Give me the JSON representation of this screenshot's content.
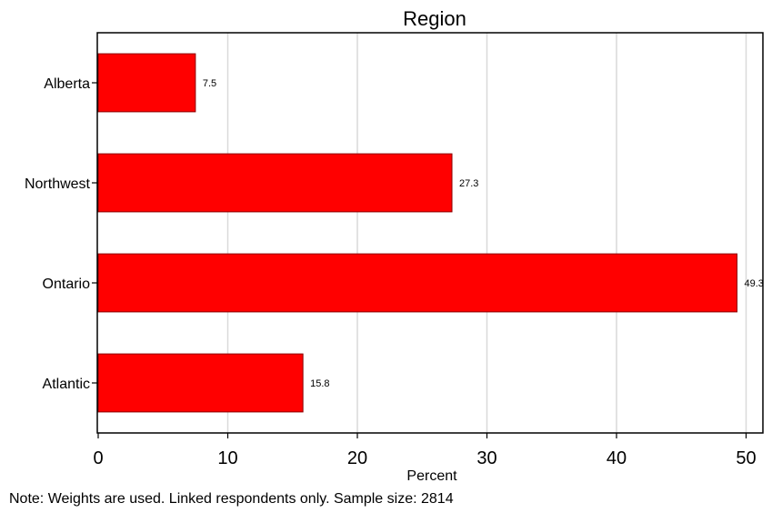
{
  "chart_data": {
    "type": "bar",
    "orientation": "horizontal",
    "title": "Region",
    "xlabel": "Percent",
    "ylabel": "",
    "categories": [
      "Alberta",
      "Northwest",
      "Ontario",
      "Atlantic"
    ],
    "values": [
      7.5,
      27.3,
      49.3,
      15.8
    ],
    "value_labels": [
      "7.5",
      "27.3",
      "49.3",
      "15.8"
    ],
    "xlim": [
      0,
      51.5
    ],
    "xticks": [
      0,
      10,
      20,
      30,
      40,
      50
    ],
    "xtick_labels": [
      "0",
      "10",
      "20",
      "30",
      "40",
      "50"
    ],
    "grid": true,
    "bar_color": "#ff0000",
    "bar_edge_color": "#8b0000",
    "grid_color": "#d9d9d9"
  },
  "note": "Note: Weights are used. Linked respondents only. Sample size: 2814"
}
